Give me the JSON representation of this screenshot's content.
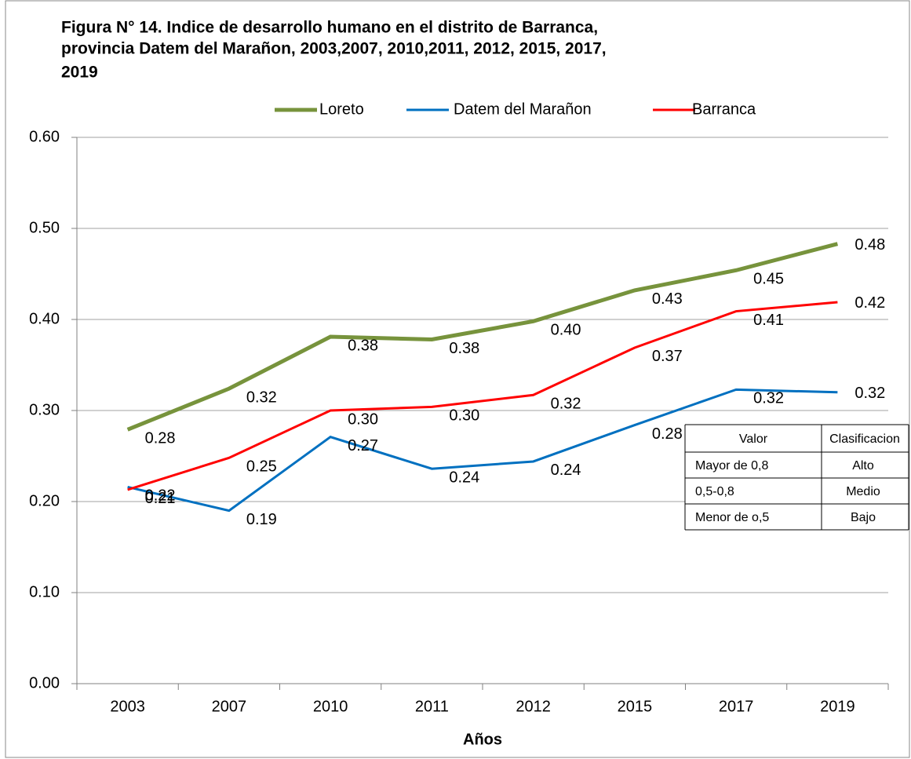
{
  "chart_data": {
    "type": "line",
    "title": "Figura  N° 14. Indice de desarrollo humano en el distrito  de Barranca,",
    "subtitle": "provincia Datem del Marañon, 2003,2007, 2010,2011, 2012, 2015, 2017,",
    "subtitle2": "2019",
    "x_label": "Años",
    "categories": [
      "2003",
      "2007",
      "2010",
      "2011",
      "2012",
      "2015",
      "2017",
      "2019"
    ],
    "series": [
      {
        "name": "Loreto",
        "color": "#77933c",
        "values": [
          0.279,
          0.324,
          0.381,
          0.378,
          0.398,
          0.432,
          0.454,
          0.483
        ],
        "value_labels": [
          "0.28",
          "0.32",
          "0.38",
          "0.38",
          "0.40",
          "0.43",
          "0.45",
          "0.48"
        ]
      },
      {
        "name": "Datem del Marañon",
        "color": "#0070c0",
        "values": [
          0.216,
          0.19,
          0.271,
          0.236,
          0.244,
          0.284,
          0.323,
          0.32
        ],
        "value_labels": [
          "0.22",
          "0.19",
          "0.27",
          "0.24",
          "0.24",
          "0.28",
          "0.32",
          "0.32"
        ]
      },
      {
        "name": "Barranca",
        "color": "#ff0000",
        "values": [
          0.213,
          0.248,
          0.3,
          0.304,
          0.317,
          0.369,
          0.409,
          0.419
        ],
        "value_labels": [
          "0.21",
          "0.25",
          "0.30",
          "0.30",
          "0.32",
          "0.37",
          "0.41",
          "0.42"
        ]
      }
    ],
    "ylim": [
      0,
      0.6
    ],
    "yticks": [
      {
        "value": 0,
        "label": "0.00"
      },
      {
        "value": 0.1,
        "label": "0.10"
      },
      {
        "value": 0.2,
        "label": "0.20"
      },
      {
        "value": 0.3,
        "label": "0.30"
      },
      {
        "value": 0.4,
        "label": "0.40"
      },
      {
        "value": 0.5,
        "label": "0.50"
      },
      {
        "value": 0.6,
        "label": "0.60"
      }
    ],
    "grid": true,
    "legend": "top"
  },
  "table": {
    "header": [
      "Valor",
      "Clasificacion"
    ],
    "rows": [
      [
        "Mayor de 0,8",
        "Alto"
      ],
      [
        "0,5-0,8",
        "Medio"
      ],
      [
        "Menor de o,5",
        "Bajo"
      ]
    ]
  }
}
